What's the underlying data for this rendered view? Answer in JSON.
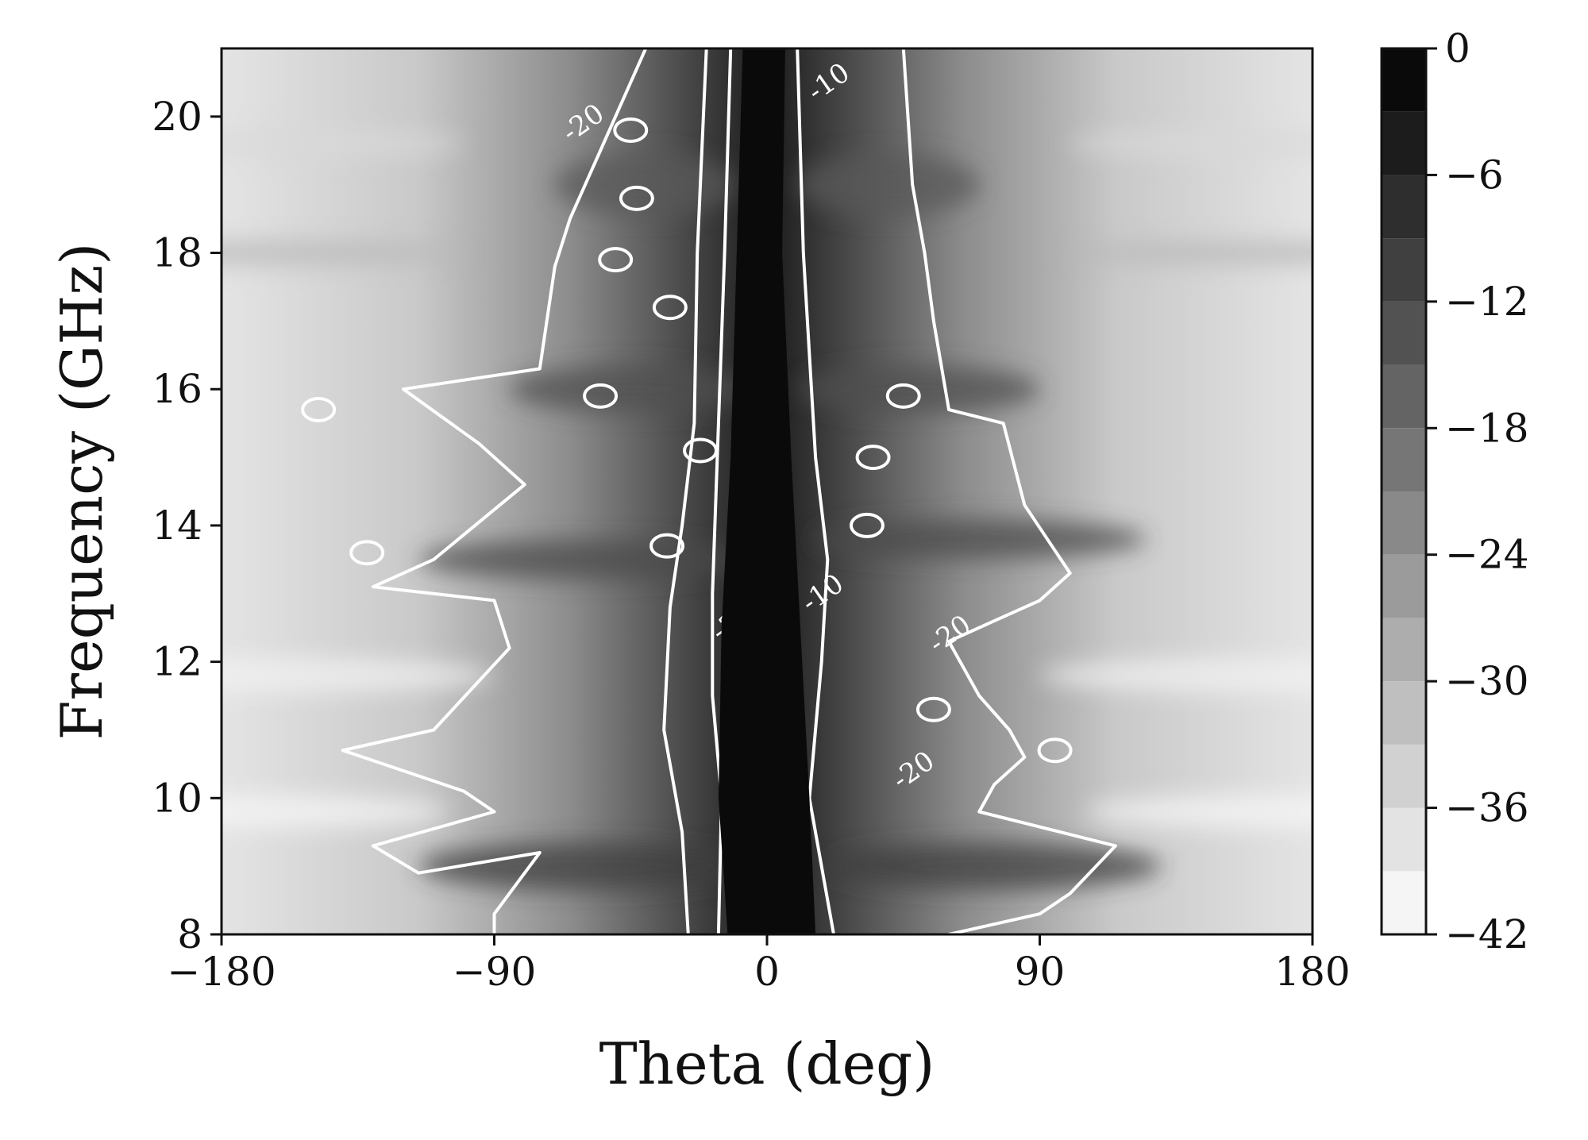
{
  "chart_data": {
    "type": "heatmap",
    "title": "",
    "xlabel": "Theta (deg)",
    "ylabel": "Frequency (GHz)",
    "xlim": [
      -180,
      180
    ],
    "ylim": [
      8,
      21
    ],
    "xticks": [
      -180,
      -90,
      0,
      90,
      180
    ],
    "xtick_labels": [
      "−180",
      "−90",
      "0",
      "90",
      "180"
    ],
    "yticks": [
      8,
      10,
      12,
      14,
      16,
      18,
      20
    ],
    "ytick_labels": [
      "8",
      "10",
      "12",
      "14",
      "16",
      "18",
      "20"
    ],
    "colorbar": {
      "range": [
        -42,
        0
      ],
      "levels_step": 3,
      "ticks": [
        0,
        -6,
        -12,
        -18,
        -24,
        -30,
        -36,
        -42
      ],
      "tick_labels": [
        "0",
        "−6",
        "−12",
        "−18",
        "−24",
        "−30",
        "−36",
        "−42"
      ],
      "colormap": "grayscale (0 = black, -42 = white)"
    },
    "contour_levels": [
      -3,
      -10,
      -20
    ],
    "contour_labels": [
      {
        "text": "-20",
        "theta": -59,
        "freq": 19.8
      },
      {
        "text": "-10",
        "theta": 22,
        "freq": 20.4
      },
      {
        "text": "-10",
        "theta": 20,
        "freq": 12.9
      },
      {
        "text": "-3",
        "theta": -12,
        "freq": 12.4
      },
      {
        "text": "-20",
        "theta": 62,
        "freq": 12.3
      },
      {
        "text": "-20",
        "theta": 50,
        "freq": 10.3
      }
    ],
    "grid": false,
    "contour_color": "#ffffff"
  }
}
